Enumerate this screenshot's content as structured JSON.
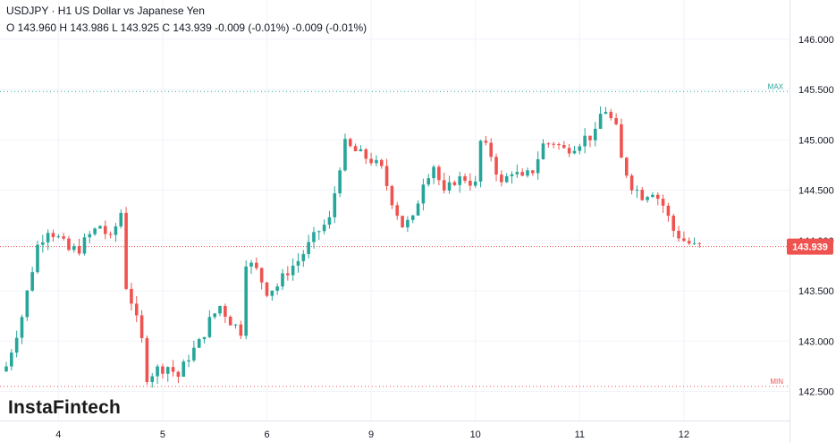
{
  "header": {
    "title": "USDJPY · H1 US Dollar vs Japanese Yen",
    "ohlc": "O 143.960 H 143.986 L 143.925 C 143.939 -0.009 (-0.01%) -0.009 (-0.01%)"
  },
  "logo": {
    "text": "InstaFintech"
  },
  "colors": {
    "up": "#26a69a",
    "down": "#ef5350",
    "grid": "#f0f3fa",
    "axis": "#e0e3eb"
  },
  "chart_data": {
    "type": "candlestick",
    "symbol": "USDJPY",
    "timeframe": "H1",
    "ylim": [
      142.3,
      146.3
    ],
    "y_ticks": [
      "146.000",
      "145.500",
      "145.000",
      "144.500",
      "144.000",
      "143.500",
      "143.000",
      "142.500"
    ],
    "x_ticks": [
      {
        "label": "4",
        "candle_index": 10
      },
      {
        "label": "5",
        "candle_index": 30
      },
      {
        "label": "6",
        "candle_index": 50
      },
      {
        "label": "9",
        "candle_index": 70
      },
      {
        "label": "10",
        "candle_index": 90
      },
      {
        "label": "11",
        "candle_index": 110
      },
      {
        "label": "12",
        "candle_index": 130
      }
    ],
    "candle_count": 134,
    "levels": [
      {
        "name": "MAX",
        "value": 145.48,
        "color": "#26a69a"
      },
      {
        "name": "MIN",
        "value": 142.55,
        "color": "#ef5350"
      }
    ],
    "last_price": {
      "value": 143.939,
      "label": "143.939",
      "color": "#ef5350"
    },
    "close_path": [
      [
        0,
        142.75
      ],
      [
        3,
        143.25
      ],
      [
        6,
        143.95
      ],
      [
        8,
        144.12
      ],
      [
        10,
        144.02
      ],
      [
        12,
        143.9
      ],
      [
        14,
        143.92
      ],
      [
        16,
        144.05
      ],
      [
        18,
        144.15
      ],
      [
        20,
        144.0
      ],
      [
        22,
        144.28
      ],
      [
        23,
        143.55
      ],
      [
        24,
        143.4
      ],
      [
        26,
        143.0
      ],
      [
        27,
        142.65
      ],
      [
        29,
        142.72
      ],
      [
        31,
        142.75
      ],
      [
        33,
        142.65
      ],
      [
        35,
        142.85
      ],
      [
        37,
        142.98
      ],
      [
        39,
        143.2
      ],
      [
        41,
        143.35
      ],
      [
        43,
        143.2
      ],
      [
        45,
        143.1
      ],
      [
        46,
        143.8
      ],
      [
        48,
        143.7
      ],
      [
        50,
        143.5
      ],
      [
        52,
        143.55
      ],
      [
        54,
        143.7
      ],
      [
        56,
        143.8
      ],
      [
        58,
        143.95
      ],
      [
        60,
        144.1
      ],
      [
        62,
        144.2
      ],
      [
        64,
        144.75
      ],
      [
        65,
        144.95
      ],
      [
        68,
        144.85
      ],
      [
        70,
        144.8
      ],
      [
        72,
        144.7
      ],
      [
        74,
        144.4
      ],
      [
        76,
        144.15
      ],
      [
        78,
        144.2
      ],
      [
        80,
        144.6
      ],
      [
        82,
        144.75
      ],
      [
        84,
        144.45
      ],
      [
        86,
        144.6
      ],
      [
        88,
        144.62
      ],
      [
        90,
        144.55
      ],
      [
        91,
        144.98
      ],
      [
        93,
        144.85
      ],
      [
        95,
        144.55
      ],
      [
        97,
        144.7
      ],
      [
        99,
        144.6
      ],
      [
        101,
        144.7
      ],
      [
        103,
        144.95
      ],
      [
        105,
        144.98
      ],
      [
        107,
        144.9
      ],
      [
        109,
        144.95
      ],
      [
        111,
        145.02
      ],
      [
        113,
        145.05
      ],
      [
        114,
        145.25
      ],
      [
        115,
        145.3
      ],
      [
        117,
        145.1
      ],
      [
        118,
        144.8
      ],
      [
        120,
        144.55
      ],
      [
        122,
        144.45
      ],
      [
        124,
        144.5
      ],
      [
        126,
        144.35
      ],
      [
        128,
        144.1
      ],
      [
        130,
        144.0
      ],
      [
        132,
        143.94
      ],
      [
        133,
        143.939
      ]
    ]
  }
}
